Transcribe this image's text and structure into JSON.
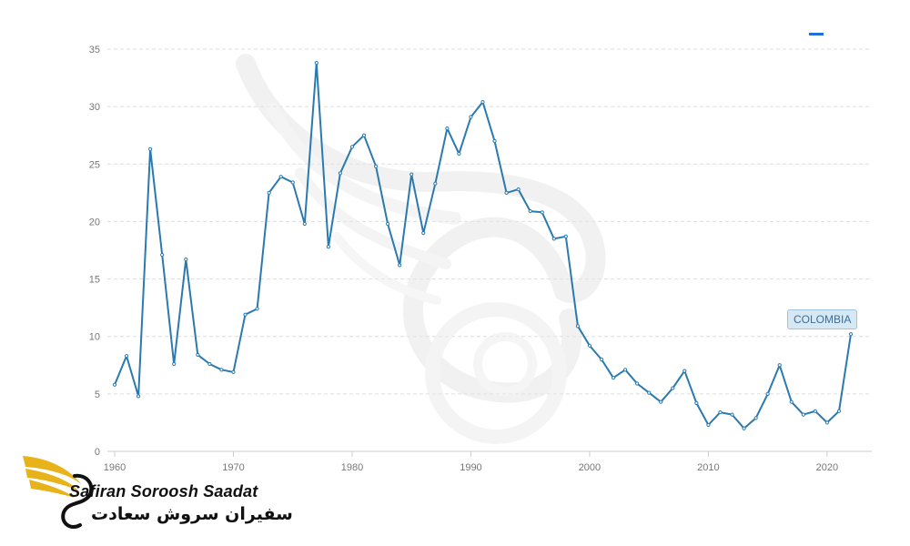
{
  "chart_data": {
    "type": "line",
    "title": "",
    "xlabel": "",
    "ylabel": "",
    "xlim": [
      1960,
      2022
    ],
    "ylim": [
      0,
      35
    ],
    "x_ticks": [
      1960,
      1970,
      1980,
      1990,
      2000,
      2010,
      2020
    ],
    "y_ticks": [
      0,
      5,
      10,
      15,
      20,
      25,
      30,
      35
    ],
    "grid": true,
    "series": [
      {
        "name": "COLOMBIA",
        "color": "#2a7ab0",
        "x": [
          1960,
          1961,
          1962,
          1963,
          1964,
          1965,
          1966,
          1967,
          1968,
          1969,
          1970,
          1971,
          1972,
          1973,
          1974,
          1975,
          1976,
          1977,
          1978,
          1979,
          1980,
          1981,
          1982,
          1983,
          1984,
          1985,
          1986,
          1987,
          1988,
          1989,
          1990,
          1991,
          1992,
          1993,
          1994,
          1995,
          1996,
          1997,
          1998,
          1999,
          2000,
          2001,
          2002,
          2003,
          2004,
          2005,
          2006,
          2007,
          2008,
          2009,
          2010,
          2011,
          2012,
          2013,
          2014,
          2015,
          2016,
          2017,
          2018,
          2019,
          2020,
          2021,
          2022
        ],
        "values": [
          5.8,
          8.3,
          4.8,
          26.3,
          17.1,
          7.6,
          16.7,
          8.4,
          7.6,
          7.1,
          6.9,
          11.9,
          12.4,
          22.5,
          23.9,
          23.4,
          19.8,
          33.8,
          17.8,
          24.2,
          26.5,
          27.5,
          24.8,
          19.8,
          16.2,
          24.1,
          19.0,
          23.3,
          28.1,
          25.9,
          29.1,
          30.4,
          27.0,
          22.5,
          22.8,
          20.9,
          20.8,
          18.5,
          18.7,
          10.9,
          9.2,
          8.0,
          6.4,
          7.1,
          5.9,
          5.1,
          4.3,
          5.5,
          7.0,
          4.2,
          2.3,
          3.4,
          3.2,
          2.0,
          2.9,
          5.0,
          7.5,
          4.3,
          3.2,
          3.5,
          2.5,
          3.5,
          10.2
        ]
      }
    ]
  },
  "legend": {
    "color": "#1f6fd6"
  },
  "annotation": {
    "label": "COLOMBIA"
  },
  "watermark": {
    "name_en": "Safiran Soroosh Saadat",
    "name_fa": "سفیران سروش سعادت",
    "accent_color": "#e8b21a"
  }
}
